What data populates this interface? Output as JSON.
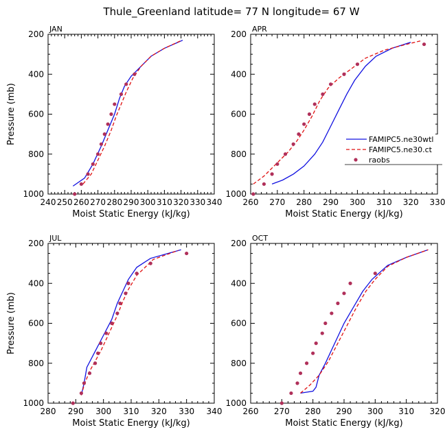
{
  "title": "Thule_Greenland  latitude= 77 N longitude= 67 W",
  "colors": {
    "model_a": "#1010e0",
    "model_b": "#e01010",
    "obs": "#b0305a"
  },
  "legend": {
    "entries": [
      "FAMIPC5.ne30wtl",
      "FAMIPC5.ne30.ct",
      "raobs"
    ]
  },
  "chart_data": [
    {
      "type": "line",
      "panel": "JAN",
      "xlabel": "Moist Static Energy (kJ/kg)",
      "ylabel": "Pressure (mb)",
      "xlim": [
        240,
        340
      ],
      "ylim": [
        1000,
        200
      ],
      "xticks": [
        240,
        250,
        260,
        270,
        280,
        290,
        300,
        310,
        320,
        330,
        340
      ],
      "yticks": [
        200,
        400,
        600,
        800,
        1000
      ],
      "series": [
        {
          "name": "FAMIPC5.ne30wtl",
          "style": "solid",
          "points": [
            [
              255,
              960
            ],
            [
              262,
              920
            ],
            [
              267,
              850
            ],
            [
              272,
              760
            ],
            [
              276,
              680
            ],
            [
              280,
              600
            ],
            [
              283,
              520
            ],
            [
              286,
              460
            ],
            [
              290,
              410
            ],
            [
              296,
              360
            ],
            [
              302,
              310
            ],
            [
              310,
              270
            ],
            [
              321,
              230
            ]
          ]
        },
        {
          "name": "FAMIPC5.ne30.ct",
          "style": "dashed",
          "points": [
            [
              261,
              950
            ],
            [
              266,
              900
            ],
            [
              270,
              830
            ],
            [
              274,
              760
            ],
            [
              278,
              680
            ],
            [
              281,
              610
            ],
            [
              284,
              550
            ],
            [
              287,
              490
            ],
            [
              291,
              420
            ],
            [
              296,
              360
            ],
            [
              302,
              310
            ],
            [
              310,
              270
            ],
            [
              320,
              232
            ]
          ]
        },
        {
          "name": "raobs",
          "style": "markers",
          "points": [
            [
              256,
              1000
            ],
            [
              260,
              950
            ],
            [
              264,
              900
            ],
            [
              267,
              850
            ],
            [
              270,
              800
            ],
            [
              272,
              750
            ],
            [
              274,
              700
            ],
            [
              276,
              650
            ],
            [
              278,
              600
            ],
            [
              280,
              550
            ],
            [
              284,
              500
            ],
            [
              287,
              450
            ],
            [
              292,
              400
            ]
          ]
        }
      ]
    },
    {
      "type": "line",
      "panel": "APR",
      "xlabel": "Moist Static Energy (kJ/kg)",
      "ylabel": "",
      "xlim": [
        260,
        330
      ],
      "ylim": [
        1000,
        200
      ],
      "xticks": [
        260,
        270,
        280,
        290,
        300,
        310,
        320,
        330
      ],
      "yticks": [
        200,
        400,
        600,
        800,
        1000
      ],
      "series": [
        {
          "name": "FAMIPC5.ne30wtl",
          "style": "solid",
          "points": [
            [
              268,
              950
            ],
            [
              272,
              930
            ],
            [
              276,
              900
            ],
            [
              280,
              860
            ],
            [
              284,
              800
            ],
            [
              287,
              740
            ],
            [
              290,
              660
            ],
            [
              293,
              580
            ],
            [
              296,
              500
            ],
            [
              299,
              430
            ],
            [
              303,
              360
            ],
            [
              307,
              310
            ],
            [
              313,
              270
            ],
            [
              320,
              240
            ]
          ]
        },
        {
          "name": "FAMIPC5.ne30.ct",
          "style": "dashed",
          "points": [
            [
              261,
              950
            ],
            [
              265,
              910
            ],
            [
              268,
              870
            ],
            [
              271,
              830
            ],
            [
              274,
              790
            ],
            [
              277,
              740
            ],
            [
              280,
              680
            ],
            [
              283,
              610
            ],
            [
              286,
              530
            ],
            [
              289,
              470
            ],
            [
              293,
              420
            ],
            [
              298,
              370
            ],
            [
              303,
              320
            ],
            [
              310,
              280
            ],
            [
              317,
              255
            ],
            [
              324,
              232
            ]
          ]
        },
        {
          "name": "raobs",
          "style": "markers",
          "points": [
            [
              261,
              1000
            ],
            [
              265,
              950
            ],
            [
              268,
              900
            ],
            [
              270,
              850
            ],
            [
              273,
              800
            ],
            [
              276,
              750
            ],
            [
              278,
              700
            ],
            [
              280,
              650
            ],
            [
              282,
              600
            ],
            [
              284,
              550
            ],
            [
              287,
              500
            ],
            [
              290,
              450
            ],
            [
              295,
              400
            ],
            [
              300,
              350
            ],
            [
              325,
              250
            ]
          ]
        }
      ]
    },
    {
      "type": "line",
      "panel": "JUL",
      "xlabel": "Moist Static Energy (kJ/kg)",
      "ylabel": "Pressure (mb)",
      "xlim": [
        280,
        340
      ],
      "ylim": [
        1000,
        200
      ],
      "xticks": [
        280,
        290,
        300,
        310,
        320,
        330,
        340
      ],
      "yticks": [
        200,
        400,
        600,
        800,
        1000
      ],
      "series": [
        {
          "name": "FAMIPC5.ne30wtl",
          "style": "solid",
          "points": [
            [
              292,
              960
            ],
            [
              293,
              900
            ],
            [
              294,
              820
            ],
            [
              297,
              740
            ],
            [
              300,
              660
            ],
            [
              303,
              580
            ],
            [
              305,
              500
            ],
            [
              307,
              440
            ],
            [
              309,
              380
            ],
            [
              312,
              320
            ],
            [
              317,
              275
            ],
            [
              328,
              232
            ]
          ]
        },
        {
          "name": "FAMIPC5.ne30.ct",
          "style": "dashed",
          "points": [
            [
              292,
              960
            ],
            [
              293,
              910
            ],
            [
              295,
              840
            ],
            [
              297,
              790
            ],
            [
              299,
              740
            ],
            [
              301,
              680
            ],
            [
              303,
              620
            ],
            [
              305,
              560
            ],
            [
              307,
              490
            ],
            [
              309,
              430
            ],
            [
              312,
              360
            ],
            [
              318,
              280
            ],
            [
              327,
              235
            ]
          ]
        },
        {
          "name": "raobs",
          "style": "markers",
          "points": [
            [
              289,
              1000
            ],
            [
              292,
              950
            ],
            [
              293,
              900
            ],
            [
              295,
              850
            ],
            [
              297,
              800
            ],
            [
              298,
              750
            ],
            [
              299,
              700
            ],
            [
              301,
              650
            ],
            [
              303,
              600
            ],
            [
              305,
              550
            ],
            [
              306,
              500
            ],
            [
              308,
              450
            ],
            [
              309,
              400
            ],
            [
              312,
              350
            ],
            [
              317,
              300
            ],
            [
              330,
              250
            ]
          ]
        }
      ]
    },
    {
      "type": "line",
      "panel": "OCT",
      "xlabel": "Moist Static Energy (kJ/kg)",
      "ylabel": "",
      "xlim": [
        260,
        320
      ],
      "ylim": [
        1000,
        200
      ],
      "xticks": [
        260,
        270,
        280,
        290,
        300,
        310,
        320
      ],
      "yticks": [
        200,
        400,
        600,
        800,
        1000
      ],
      "series": [
        {
          "name": "FAMIPC5.ne30wtl",
          "style": "solid",
          "points": [
            [
              276,
              950
            ],
            [
              280,
              940
            ],
            [
              281,
              920
            ],
            [
              282,
              860
            ],
            [
              284,
              800
            ],
            [
              287,
              700
            ],
            [
              290,
              600
            ],
            [
              293,
              520
            ],
            [
              296,
              440
            ],
            [
              299,
              380
            ],
            [
              304,
              310
            ],
            [
              310,
              270
            ],
            [
              317,
              232
            ]
          ]
        },
        {
          "name": "FAMIPC5.ne30.ct",
          "style": "dashed",
          "points": [
            [
              276,
              950
            ],
            [
              279,
              910
            ],
            [
              282,
              860
            ],
            [
              285,
              790
            ],
            [
              288,
              700
            ],
            [
              291,
              610
            ],
            [
              294,
              520
            ],
            [
              297,
              440
            ],
            [
              300,
              380
            ],
            [
              304,
              315
            ],
            [
              310,
              270
            ],
            [
              317,
              232
            ]
          ]
        },
        {
          "name": "raobs",
          "style": "markers",
          "points": [
            [
              270,
              1000
            ],
            [
              273,
              950
            ],
            [
              275,
              900
            ],
            [
              276,
              850
            ],
            [
              278,
              800
            ],
            [
              280,
              750
            ],
            [
              281,
              700
            ],
            [
              283,
              650
            ],
            [
              284,
              600
            ],
            [
              286,
              550
            ],
            [
              288,
              500
            ],
            [
              290,
              450
            ],
            [
              292,
              400
            ],
            [
              300,
              350
            ]
          ]
        }
      ]
    }
  ],
  "panel_layout": [
    "JAN",
    "APR",
    "JUL",
    "OCT"
  ]
}
